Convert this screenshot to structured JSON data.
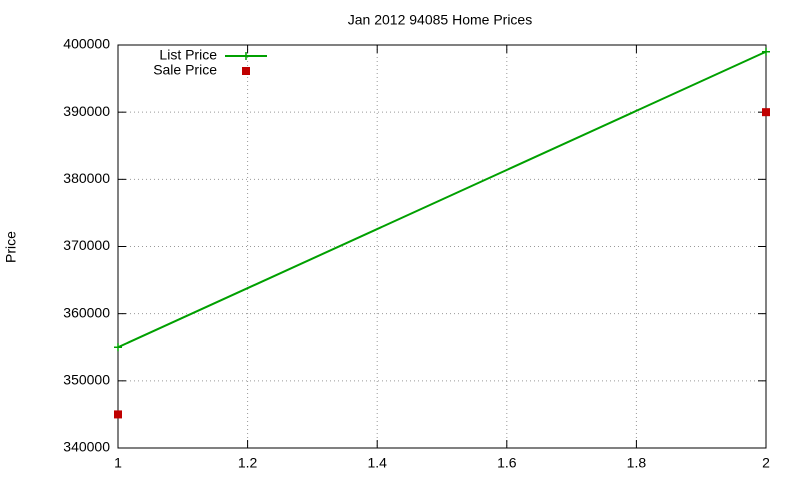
{
  "chart_data": {
    "type": "line",
    "title": "Jan 2012 94085 Home Prices",
    "y_label": "Price",
    "x": [
      1,
      2
    ],
    "series": [
      {
        "name": "List Price",
        "color": "#00a000",
        "style": "linespoints",
        "values": [
          355000,
          399000
        ]
      },
      {
        "name": "Sale Price",
        "color": "#c00000",
        "style": "points",
        "values": [
          345000,
          390000
        ]
      }
    ],
    "xlim": [
      1,
      2
    ],
    "xticks": [
      1,
      1.2,
      1.4,
      1.6,
      1.8,
      2
    ],
    "ylim": [
      340000,
      400000
    ],
    "yticks": [
      340000,
      350000,
      360000,
      370000,
      380000,
      390000,
      400000
    ],
    "grid": true,
    "legend": "top-left"
  }
}
